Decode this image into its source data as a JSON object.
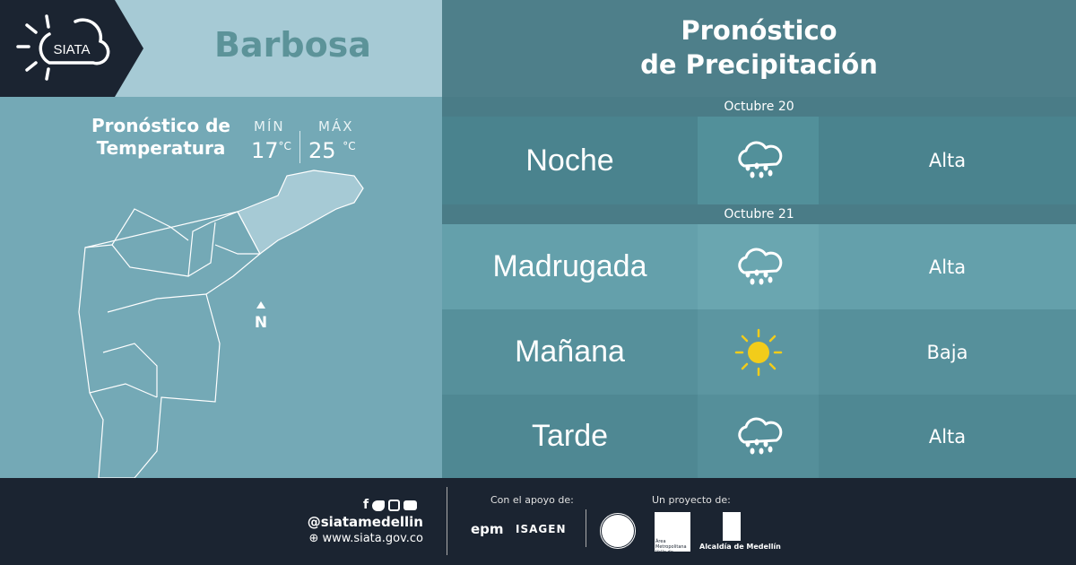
{
  "header": {
    "logo_text": "SIATA",
    "city": "Barbosa",
    "forecast_title_line1": "Pronóstico",
    "forecast_title_line2": "de Precipitación"
  },
  "temperature": {
    "title_line1": "Pronóstico de",
    "title_line2": "Temperatura",
    "min_label": "MÍN",
    "max_label": "MÁX",
    "min_value": "17",
    "max_value": "25",
    "unit": "°C",
    "north_label": "N"
  },
  "forecast": {
    "days": [
      {
        "date": "Octubre 20",
        "periods": [
          {
            "name": "Noche",
            "icon": "rain-cloud-icon",
            "level": "Alta"
          }
        ]
      },
      {
        "date": "Octubre 21",
        "periods": [
          {
            "name": "Madrugada",
            "icon": "rain-cloud-icon",
            "level": "Alta"
          },
          {
            "name": "Mañana",
            "icon": "sun-icon",
            "level": "Baja"
          },
          {
            "name": "Tarde",
            "icon": "rain-cloud-icon",
            "level": "Alta"
          }
        ]
      }
    ]
  },
  "footer": {
    "handle": "@siatamedellin",
    "website": "www.siata.gov.co",
    "support_label": "Con el apoyo de:",
    "project_label": "Un proyecto de:",
    "sponsors": [
      "epm",
      "ISAGEN"
    ],
    "partners": [
      "Área Metropolitana Valle de Aburrá",
      "Alcaldía de Medellín"
    ],
    "social_icons": [
      "facebook-icon",
      "twitter-icon",
      "instagram-icon",
      "youtube-icon"
    ]
  },
  "colors": {
    "sun": "#f2cc1a",
    "dark": "#1b2431",
    "city": "#5c9399"
  }
}
